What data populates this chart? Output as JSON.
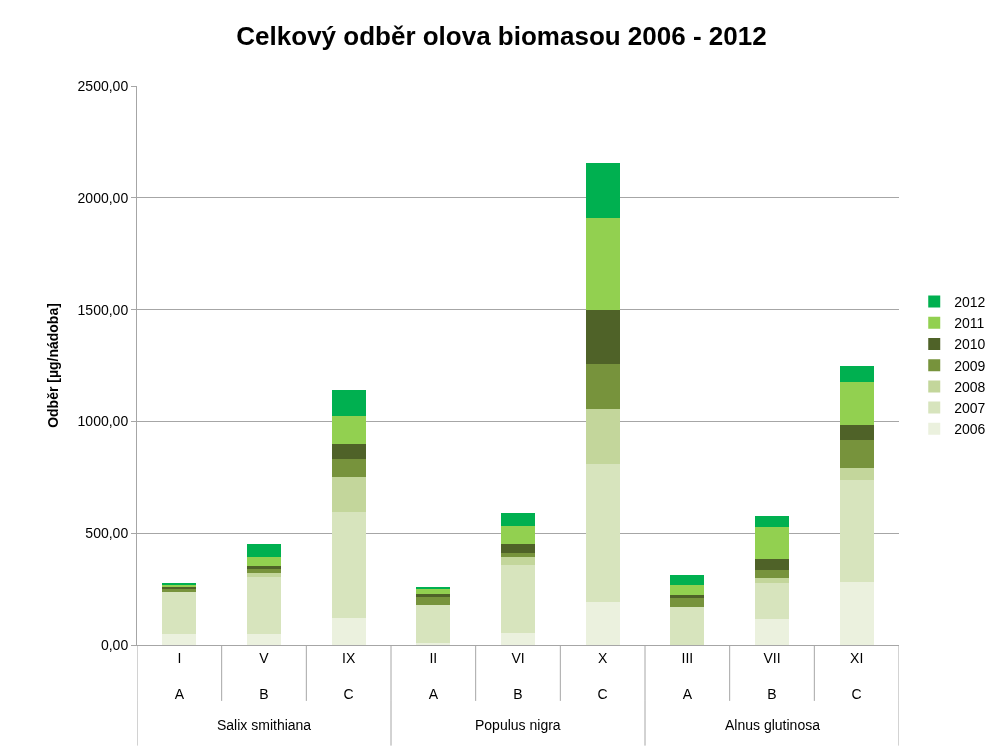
{
  "chart_data": {
    "type": "bar",
    "stacked": true,
    "title": "Celkový odběr olova biomasou 2006 - 2012",
    "ylabel": "Odběr [µg/nádoba]",
    "categories": [
      "I\nA",
      "V\nB",
      "IX\nC",
      "II\nA",
      "VI\nB",
      "X\nC",
      "III\nA",
      "VII\nB",
      "XI\nC"
    ],
    "annotations": [
      "Salix smithiana",
      "Populus nigra",
      "Alnus glutinosa"
    ],
    "series": [
      {
        "name": "2006",
        "color": "#ebf1de",
        "values": [
          48,
          48,
          119,
          10,
          55,
          194,
          null,
          116,
          283
        ]
      },
      {
        "name": "2007",
        "color": "#d7e4bd",
        "values": [
          190,
          257,
          476,
          168,
          303,
          616,
          171,
          160,
          455
        ]
      },
      {
        "name": "2008",
        "color": "#c3d69b",
        "values": [
          null,
          18,
          158,
          null,
          34,
          246,
          null,
          22,
          55
        ]
      },
      {
        "name": "2009",
        "color": "#77933c",
        "values": [
          12,
          17,
          79,
          35,
          18,
          199,
          37,
          37,
          122
        ]
      },
      {
        "name": "2010",
        "color": "#4f6228",
        "values": [
          10,
          15,
          68,
          15,
          40,
          245,
          15,
          51,
          68
        ]
      },
      {
        "name": "2011",
        "color": "#92d050",
        "values": [
          12,
          40,
          122,
          21,
          81,
          411,
          45,
          140,
          192
        ]
      },
      {
        "name": "2012",
        "color": "#00b050",
        "values": [
          5,
          55,
          117,
          12,
          58,
          243,
          43,
          52,
          73
        ]
      }
    ],
    "ylim": [
      0,
      2500
    ],
    "yticks": [
      {
        "value": 0,
        "label": "0,00"
      },
      {
        "value": 500,
        "label": "500,00"
      },
      {
        "value": 1000,
        "label": "1000,00"
      },
      {
        "value": 1500,
        "label": "1500,00"
      },
      {
        "value": 2000,
        "label": "2000,00"
      },
      {
        "value": 2500,
        "label": "2500,00"
      }
    ],
    "grid": "y",
    "legend": "right"
  }
}
